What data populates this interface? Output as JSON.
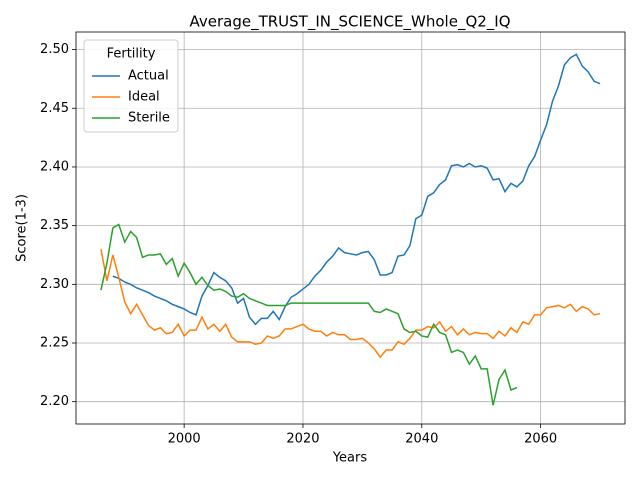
{
  "chart_data": {
    "type": "line",
    "title": "Average_TRUST_IN_SCIENCE_Whole_Q2_IQ",
    "x_label": "Years",
    "y_label": "Score(1-3)",
    "legend_title": "Fertility",
    "legend": "upper left",
    "grid": true,
    "x": [
      1986,
      1987,
      1988,
      1989,
      1990,
      1991,
      1992,
      1993,
      1994,
      1995,
      1996,
      1997,
      1998,
      1999,
      2000,
      2001,
      2002,
      2003,
      2004,
      2005,
      2006,
      2007,
      2008,
      2009,
      2010,
      2011,
      2012,
      2013,
      2014,
      2015,
      2016,
      2017,
      2018,
      2019,
      2020,
      2021,
      2022,
      2023,
      2024,
      2025,
      2026,
      2027,
      2028,
      2029,
      2030,
      2031,
      2032,
      2033,
      2034,
      2035,
      2036,
      2037,
      2038,
      2039,
      2040,
      2041,
      2042,
      2043,
      2044,
      2045,
      2046,
      2047,
      2048,
      2049,
      2050,
      2051,
      2052,
      2053,
      2054,
      2055,
      2056,
      2057,
      2058,
      2059,
      2060,
      2061,
      2062,
      2063,
      2064,
      2065,
      2066,
      2067,
      2068,
      2069,
      2070
    ],
    "series": [
      {
        "name": "Actual",
        "color": "#1f77b4",
        "values": [
          null,
          null,
          2.307,
          2.305,
          2.302,
          2.3,
          2.297,
          2.295,
          2.293,
          2.29,
          2.288,
          2.286,
          2.283,
          2.281,
          2.279,
          2.276,
          2.274,
          2.29,
          2.299,
          2.31,
          2.306,
          2.303,
          2.297,
          2.284,
          2.288,
          2.272,
          2.266,
          2.271,
          2.271,
          2.277,
          2.27,
          2.281,
          2.289,
          2.292,
          2.296,
          2.3,
          2.307,
          2.312,
          2.319,
          2.324,
          2.331,
          2.327,
          2.326,
          2.325,
          2.327,
          2.328,
          2.321,
          2.308,
          2.308,
          2.31,
          2.324,
          2.325,
          2.333,
          2.356,
          2.359,
          2.375,
          2.378,
          2.385,
          2.389,
          2.401,
          2.402,
          2.4,
          2.403,
          2.4,
          2.401,
          2.399,
          2.389,
          2.39,
          2.379,
          2.386,
          2.383,
          2.388,
          2.401,
          2.409,
          2.423,
          2.436,
          2.456,
          2.469,
          2.487,
          2.493,
          2.496,
          2.486,
          2.481,
          2.473,
          2.471
        ]
      },
      {
        "name": "Ideal",
        "color": "#ff7f0e",
        "values": [
          2.33,
          2.303,
          2.325,
          2.306,
          2.285,
          2.275,
          2.283,
          2.274,
          2.265,
          2.261,
          2.263,
          2.258,
          2.259,
          2.266,
          2.256,
          2.261,
          2.261,
          2.272,
          2.262,
          2.266,
          2.26,
          2.266,
          2.255,
          2.251,
          2.251,
          2.251,
          2.249,
          2.25,
          2.256,
          2.254,
          2.256,
          2.262,
          2.262,
          2.264,
          2.266,
          2.262,
          2.26,
          2.26,
          2.256,
          2.259,
          2.257,
          2.257,
          2.253,
          2.253,
          2.254,
          2.25,
          2.245,
          2.238,
          2.244,
          2.244,
          2.251,
          2.249,
          2.254,
          2.261,
          2.261,
          2.264,
          2.263,
          2.268,
          2.26,
          2.264,
          2.257,
          2.262,
          2.257,
          2.259,
          2.258,
          2.258,
          2.254,
          2.26,
          2.256,
          2.263,
          2.259,
          2.268,
          2.266,
          2.274,
          2.274,
          2.28,
          2.281,
          2.282,
          2.28,
          2.283,
          2.277,
          2.281,
          2.279,
          2.274,
          2.275
        ]
      },
      {
        "name": "Sterile",
        "color": "#2ca02c",
        "values": [
          2.295,
          2.318,
          2.348,
          2.351,
          2.336,
          2.345,
          2.34,
          2.323,
          2.325,
          2.325,
          2.326,
          2.317,
          2.322,
          2.307,
          2.318,
          2.31,
          2.3,
          2.306,
          2.299,
          2.295,
          2.296,
          2.294,
          2.29,
          2.289,
          2.292,
          2.288,
          2.286,
          2.284,
          2.282,
          2.282,
          2.282,
          2.282,
          2.284,
          2.284,
          2.284,
          2.284,
          2.284,
          2.284,
          2.284,
          2.284,
          2.284,
          2.284,
          2.284,
          2.284,
          2.284,
          2.284,
          2.277,
          2.276,
          2.279,
          2.277,
          2.275,
          2.262,
          2.259,
          2.26,
          2.256,
          2.255,
          2.266,
          2.259,
          2.257,
          2.242,
          2.244,
          2.242,
          2.232,
          2.239,
          2.228,
          2.228,
          2.197,
          2.219,
          2.227,
          2.21,
          2.212,
          null,
          null,
          null,
          null,
          null,
          null,
          null,
          null,
          null,
          null,
          null,
          null,
          null,
          null
        ]
      }
    ],
    "xlim": [
      1981.8,
      2074.2
    ],
    "ylim": [
      2.181,
      2.515
    ],
    "xticks": [
      2000,
      2020,
      2040,
      2060
    ],
    "yticks": [
      {
        "value": 2.2,
        "label": "2.20"
      },
      2.25,
      {
        "value": 2.3,
        "label": "2.30"
      },
      2.35,
      {
        "value": 2.4,
        "label": "2.40"
      },
      2.45,
      {
        "value": 2.5,
        "label": "2.50"
      }
    ]
  }
}
